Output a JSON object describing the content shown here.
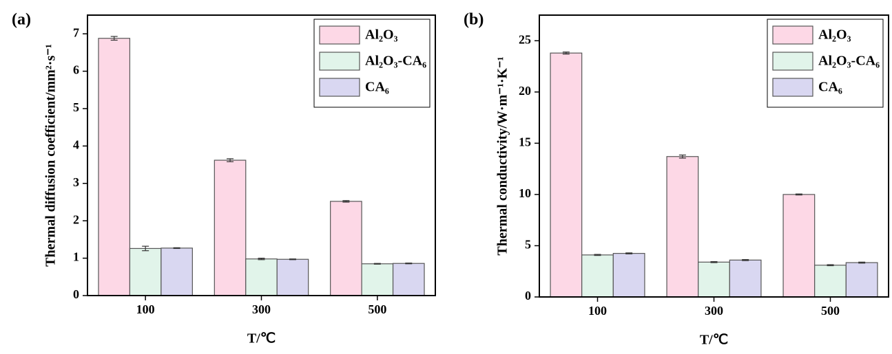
{
  "chart_data": [
    {
      "type": "bar",
      "panel_label": "(a)",
      "x_label": "T/℃",
      "y_label": "Thermal diffusion coefficient/mm²·s⁻¹",
      "categories": [
        "100",
        "300",
        "500"
      ],
      "series": [
        {
          "name": "Al₂O₃",
          "color": "#fdd8e6",
          "values": [
            6.88,
            3.62,
            2.52
          ],
          "errors": [
            0.05,
            0.04,
            0.02
          ]
        },
        {
          "name": "Al₂O₃-CA₆",
          "color": "#e1f4ea",
          "values": [
            1.26,
            0.98,
            0.85
          ],
          "errors": [
            0.06,
            0.02,
            0.01
          ]
        },
        {
          "name": "CA₆",
          "color": "#d9d7f1",
          "values": [
            1.27,
            0.97,
            0.86
          ],
          "errors": [
            0.01,
            0.01,
            0.01
          ]
        }
      ],
      "ylim": [
        0,
        7.5
      ],
      "yticks": [
        0,
        1,
        2,
        3,
        4,
        5,
        6,
        7
      ],
      "legend": "upper right"
    },
    {
      "type": "bar",
      "panel_label": "(b)",
      "x_label": "T/℃",
      "y_label": "Thermal conductivity/W·m⁻¹·K⁻¹",
      "categories": [
        "100",
        "300",
        "500"
      ],
      "series": [
        {
          "name": "Al₂O₃",
          "color": "#fdd8e6",
          "values": [
            23.8,
            13.7,
            10.0
          ],
          "errors": [
            0.1,
            0.15,
            0.05
          ]
        },
        {
          "name": "Al₂O₃-CA₆",
          "color": "#e1f4ea",
          "values": [
            4.1,
            3.4,
            3.1
          ],
          "errors": [
            0.05,
            0.05,
            0.05
          ]
        },
        {
          "name": "CA₆",
          "color": "#d9d7f1",
          "values": [
            4.25,
            3.6,
            3.35
          ],
          "errors": [
            0.05,
            0.05,
            0.05
          ]
        }
      ],
      "ylim": [
        0,
        27.5
      ],
      "yticks": [
        0,
        5,
        10,
        15,
        20,
        25
      ],
      "legend": "upper right"
    }
  ]
}
